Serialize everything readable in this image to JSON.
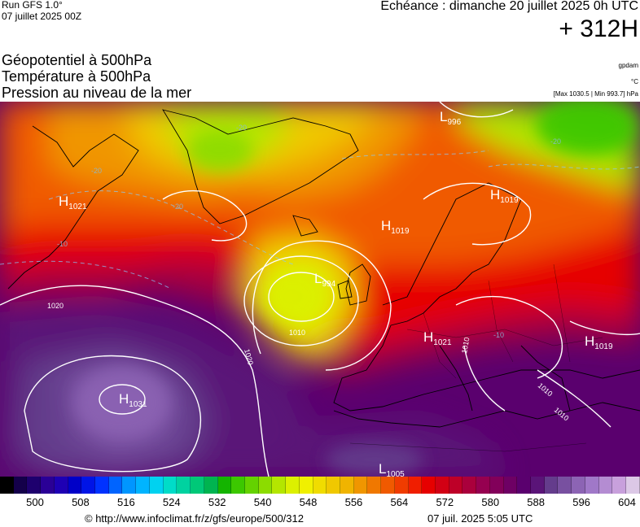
{
  "header": {
    "run_title": "Run GFS 1.0°",
    "run_date": "07 juillet 2025 00Z",
    "valid_time": "Echéance : dimanche 20 juillet 2025 0h UTC",
    "lead_time": "+ 312H"
  },
  "parameters": [
    "Géopotentiel à 500hPa",
    "Température à 500hPa",
    "Pression au niveau de la mer"
  ],
  "units": {
    "geopotential": "gpdam",
    "temperature": "°C",
    "pressure": "[Max 1030.5 | Min 993.7] hPa"
  },
  "pressure_centers": [
    {
      "type": "H",
      "value": "1021",
      "region": "Canada / Labrador"
    },
    {
      "type": "L",
      "value": "996",
      "region": "Arctic north of Scandinavia"
    },
    {
      "type": "H",
      "value": "1019",
      "region": "north of Scandinavia"
    },
    {
      "type": "H",
      "value": "1019",
      "region": "Scandinavia"
    },
    {
      "type": "L",
      "value": "994",
      "region": "west of Ireland"
    },
    {
      "type": "H",
      "value": "1021",
      "region": "central Europe"
    },
    {
      "type": "H",
      "value": "1019",
      "region": "Eastern Europe"
    },
    {
      "type": "H",
      "value": "1031",
      "region": "Azores"
    },
    {
      "type": "L",
      "value": "1005",
      "region": "Sahara"
    }
  ],
  "isobar_labels": [
    "1020",
    "1010",
    "1020",
    "1010",
    "1010",
    "1010"
  ],
  "temperature_labels": [
    "-20",
    "-20",
    "-20",
    "-20",
    "-10",
    "-10"
  ],
  "colorbar": {
    "colors": [
      "#000000",
      "#14004a",
      "#1e006e",
      "#2a0096",
      "#1e00b4",
      "#0000c8",
      "#0014e6",
      "#0032ff",
      "#0064ff",
      "#0096ff",
      "#00b4ff",
      "#00d2f0",
      "#00dcc8",
      "#00d2a0",
      "#00c878",
      "#00b450",
      "#14b400",
      "#3cc800",
      "#64d200",
      "#8cdc00",
      "#b4e600",
      "#dcf000",
      "#f0f000",
      "#f0dc00",
      "#f0c800",
      "#f0b400",
      "#f09600",
      "#f07800",
      "#f05a00",
      "#f03c00",
      "#f01e00",
      "#e60000",
      "#d20014",
      "#be0028",
      "#aa003c",
      "#960050",
      "#82005a",
      "#6e0064",
      "#5a006e",
      "#5a1478",
      "#643c8c",
      "#7850a0",
      "#8c64b4",
      "#a078c8",
      "#b48cd2",
      "#c8a0dc",
      "#dcc8e6"
    ],
    "tick_labels": [
      "500",
      "508",
      "516",
      "524",
      "532",
      "540",
      "548",
      "556",
      "564",
      "572",
      "580",
      "588",
      "596",
      "604"
    ]
  },
  "footer": {
    "url": "© http://www.infoclimat.fr/z/gfs/europe/500/312",
    "generated": "07 juil. 2025  5:05 UTC"
  }
}
